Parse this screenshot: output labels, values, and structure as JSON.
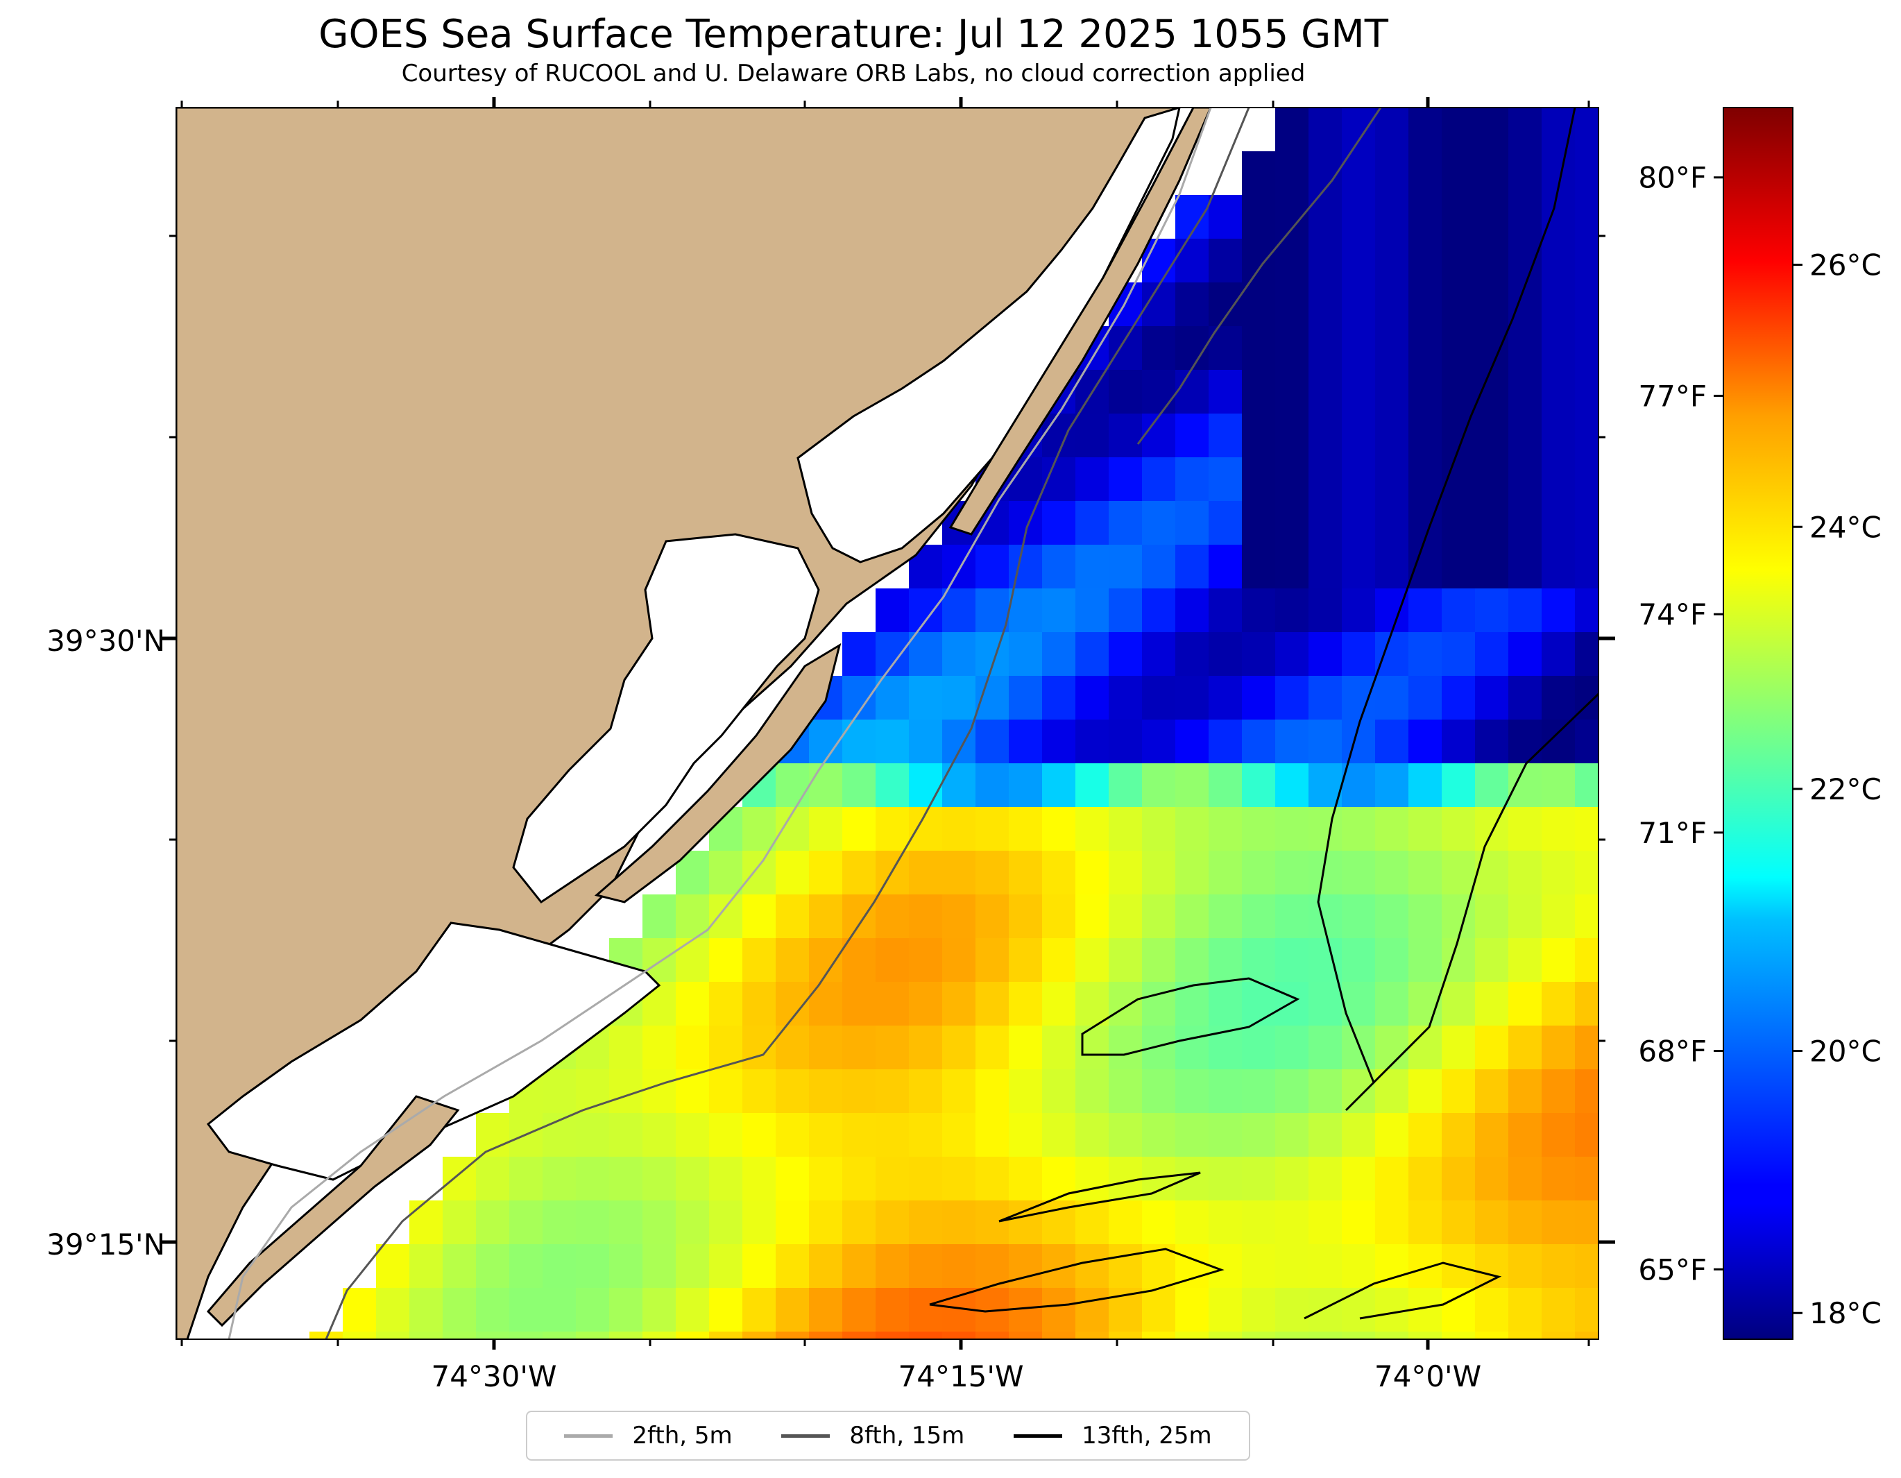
{
  "title": "GOES Sea Surface Temperature: Jul 12 2025 1055 GMT",
  "subtitle": "Courtesy of RUCOOL and U. Delaware ORB Labs, no cloud correction applied",
  "latitude_labels": [
    "39°30'N",
    "39°15'N"
  ],
  "longitude_labels": [
    "74°30'W",
    "74°15'W",
    "74°0'W"
  ],
  "colorbar": {
    "colormap": "jet",
    "range_c": [
      17.8,
      27.2
    ],
    "celsius_ticks": [
      {
        "value": 18,
        "label": "18°C"
      },
      {
        "value": 20,
        "label": "20°C"
      },
      {
        "value": 22,
        "label": "22°C"
      },
      {
        "value": 24,
        "label": "24°C"
      },
      {
        "value": 26,
        "label": "26°C"
      }
    ],
    "fahrenheit_ticks": [
      {
        "value": 65,
        "label": "65°F"
      },
      {
        "value": 68,
        "label": "68°F"
      },
      {
        "value": 71,
        "label": "71°F"
      },
      {
        "value": 74,
        "label": "74°F"
      },
      {
        "value": 77,
        "label": "77°F"
      },
      {
        "value": 80,
        "label": "80°F"
      }
    ]
  },
  "legend": [
    {
      "label": "2fth, 5m",
      "color": "#aaaaaa"
    },
    {
      "label": "8fth, 15m",
      "color": "#555555"
    },
    {
      "label": "13fth, 25m",
      "color": "#000000"
    }
  ],
  "colors": {
    "land": "#d2b48c",
    "water_no_data": "#ffffff",
    "coastline": "#000000"
  }
}
